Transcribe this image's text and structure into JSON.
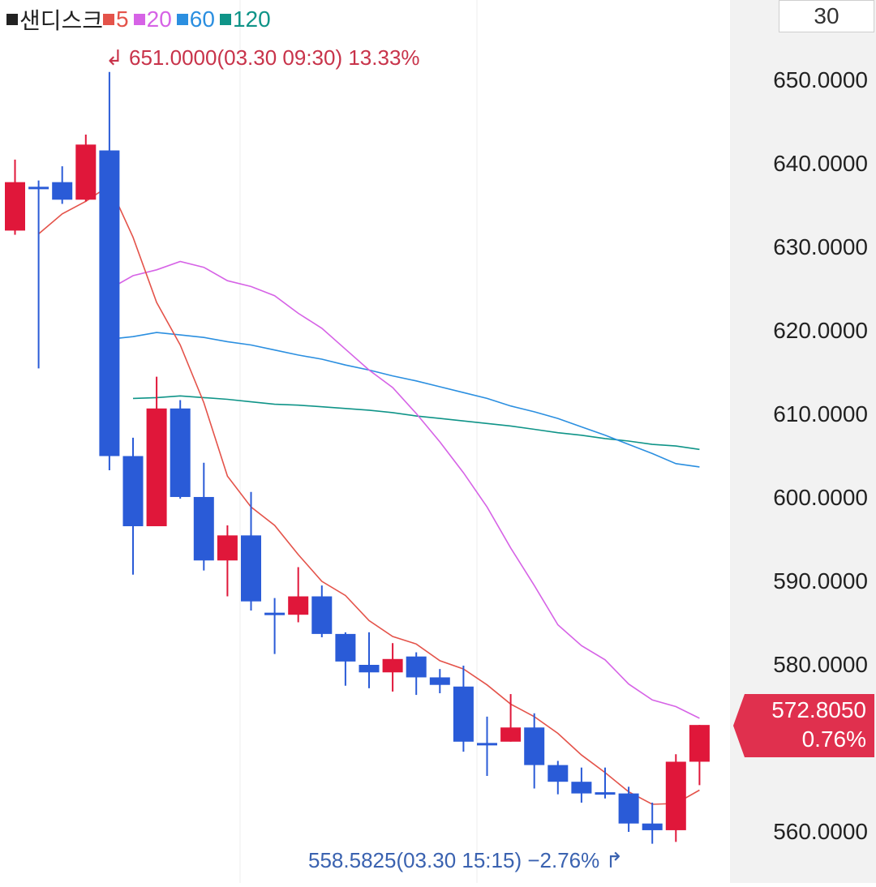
{
  "legend": {
    "title": "샌디스크",
    "ma5": "5",
    "ma20": "20",
    "ma60": "60",
    "ma120": "120",
    "title_color": "#222222",
    "ma5_color": "#e4534a",
    "ma20_color": "#d663e6",
    "ma60_color": "#2b8fe0",
    "ma120_color": "#0f9488"
  },
  "period": "30",
  "current_price": {
    "value": "572.8050",
    "change": "0.76%",
    "color": "#e0304e"
  },
  "annotations": {
    "high": "651.0000(03.30 09:30) 13.33%",
    "low": "558.5825(03.30 15:15) −2.76%",
    "high_color": "#c8334a",
    "low_color": "#3a62b0"
  },
  "chart_data": {
    "type": "candlestick",
    "y_axis": {
      "ticks": [
        "650.0000",
        "640.0000",
        "630.0000",
        "620.0000",
        "610.0000",
        "600.0000",
        "590.0000",
        "580.0000",
        "570.0000",
        "560.0000"
      ],
      "range": [
        557,
        655
      ]
    },
    "up_color": "#e0173a",
    "down_color": "#2a5bd7",
    "candles": [
      {
        "o": 632,
        "h": 640.5,
        "l": 631.5,
        "c": 637.8
      },
      {
        "o": 637.1,
        "h": 638,
        "l": 615.5,
        "c": 637.0
      },
      {
        "o": 637.8,
        "h": 639.7,
        "l": 635.2,
        "c": 635.7
      },
      {
        "o": 635.7,
        "h": 643.5,
        "l": 635.5,
        "c": 642.3
      },
      {
        "o": 641.6,
        "h": 651.0,
        "l": 603.3,
        "c": 605.0
      },
      {
        "o": 605.0,
        "h": 607.2,
        "l": 590.8,
        "c": 596.6
      },
      {
        "o": 596.6,
        "h": 614.5,
        "l": 596.6,
        "c": 610.7
      },
      {
        "o": 610.7,
        "h": 611.7,
        "l": 599.9,
        "c": 600.1
      },
      {
        "o": 600.1,
        "h": 604.2,
        "l": 591.3,
        "c": 592.5
      },
      {
        "o": 592.5,
        "h": 596.7,
        "l": 588.2,
        "c": 595.5
      },
      {
        "o": 595.5,
        "h": 600.7,
        "l": 586.5,
        "c": 587.6
      },
      {
        "o": 586.1,
        "h": 588.0,
        "l": 581.3,
        "c": 585.9
      },
      {
        "o": 586.0,
        "h": 591.7,
        "l": 585.1,
        "c": 588.2
      },
      {
        "o": 588.2,
        "h": 589.5,
        "l": 583.3,
        "c": 583.7
      },
      {
        "o": 583.7,
        "h": 583.9,
        "l": 577.5,
        "c": 580.4
      },
      {
        "o": 580.0,
        "h": 583.9,
        "l": 577.2,
        "c": 579.1
      },
      {
        "o": 579.1,
        "h": 582.6,
        "l": 576.8,
        "c": 580.7
      },
      {
        "o": 581.0,
        "h": 581.5,
        "l": 576.4,
        "c": 578.5
      },
      {
        "o": 578.5,
        "h": 579.5,
        "l": 576.6,
        "c": 577.6
      },
      {
        "o": 577.4,
        "h": 579.9,
        "l": 569.6,
        "c": 570.8
      },
      {
        "o": 570.5,
        "h": 573.8,
        "l": 566.7,
        "c": 570.5
      },
      {
        "o": 570.8,
        "h": 576.5,
        "l": 570.8,
        "c": 572.5
      },
      {
        "o": 572.5,
        "h": 574.2,
        "l": 565.2,
        "c": 568.0
      },
      {
        "o": 568.0,
        "h": 568.5,
        "l": 564.5,
        "c": 566.0
      },
      {
        "o": 566.0,
        "h": 567.7,
        "l": 563.5,
        "c": 564.6
      },
      {
        "o": 564.6,
        "h": 567.7,
        "l": 564.0,
        "c": 564.6
      },
      {
        "o": 564.6,
        "h": 565.4,
        "l": 560.0,
        "c": 561.0
      },
      {
        "o": 561.0,
        "h": 563.5,
        "l": 558.58,
        "c": 560.2
      },
      {
        "o": 560.2,
        "h": 569.3,
        "l": 558.8,
        "c": 568.4
      },
      {
        "o": 568.4,
        "h": 572.8,
        "l": 565.6,
        "c": 572.8
      }
    ],
    "ma_series": [
      {
        "name": "5",
        "color": "#e4534a",
        "values": [
          631.6,
          634.0,
          635.5,
          637.4,
          631.2,
          623.4,
          618.3,
          611.4,
          602.6,
          598.9,
          596.7,
          593.2,
          590.0,
          588.3,
          585.3,
          583.4,
          582.5,
          580.5,
          579.5,
          577.6,
          575.3,
          573.8,
          571.8,
          569.2,
          567.1,
          564.8,
          563.3,
          563.4,
          565.0
        ]
      },
      {
        "name": "20",
        "color": "#d663e6",
        "values": [
          625.0,
          626.6,
          627.3,
          628.3,
          627.6,
          626.0,
          625.3,
          624.2,
          622.1,
          620.3,
          617.8,
          615.3,
          613.2,
          610.1,
          606.7,
          603.0,
          598.9,
          594.0,
          589.5,
          584.8,
          582.3,
          580.6,
          577.7,
          575.8,
          575.0,
          573.6
        ]
      },
      {
        "name": "60",
        "color": "#2b8fe0",
        "values": [
          619.0,
          619.3,
          619.8,
          619.5,
          619.2,
          618.7,
          618.3,
          617.7,
          617.1,
          616.6,
          615.9,
          615.3,
          614.6,
          614.0,
          613.3,
          612.6,
          611.9,
          611.0,
          610.3,
          609.5,
          608.5,
          607.5,
          606.4,
          605.3,
          604.1,
          603.7
        ]
      },
      {
        "name": "120",
        "color": "#0f9488",
        "values": [
          611.9,
          612.0,
          612.2,
          612.0,
          611.8,
          611.5,
          611.2,
          611.1,
          610.9,
          610.7,
          610.5,
          610.2,
          609.8,
          609.5,
          609.2,
          608.9,
          608.6,
          608.2,
          607.8,
          607.5,
          607.1,
          606.8,
          606.4,
          606.2,
          605.8
        ]
      }
    ]
  }
}
